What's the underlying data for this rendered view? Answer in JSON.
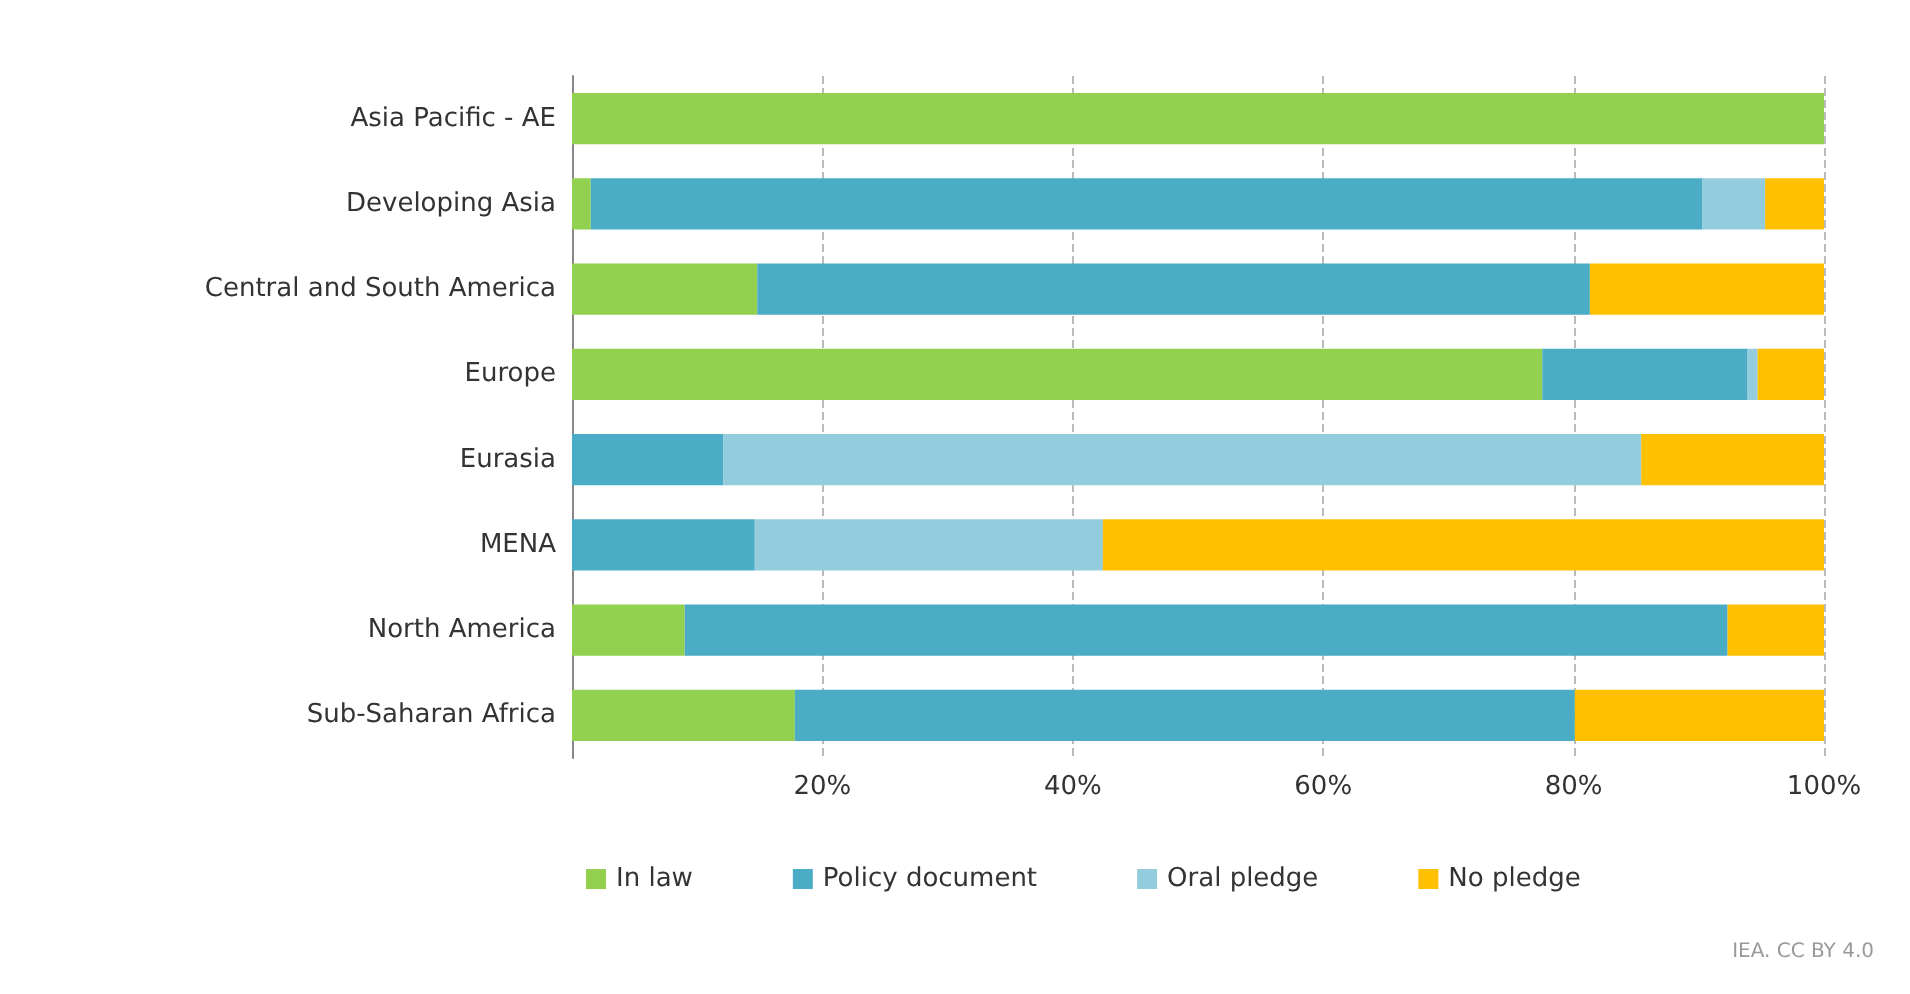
{
  "chart_data": {
    "type": "bar",
    "orientation": "horizontal",
    "stacked": true,
    "categories": [
      "Asia Pacific - AE",
      "Developing Asia",
      "Central and South America",
      "Europe",
      "Eurasia",
      "MENA",
      "North America",
      "Sub-Saharan Africa"
    ],
    "series": [
      {
        "name": "In law",
        "color": "#92d050",
        "values": [
          100,
          1.5,
          14.8,
          77.5,
          0,
          0,
          9,
          17.8
        ]
      },
      {
        "name": "Policy document",
        "color": "#4bacc6",
        "values": [
          0,
          88.8,
          66.5,
          16.4,
          12.1,
          14.6,
          83.3,
          62.3
        ]
      },
      {
        "name": "Oral pledge",
        "color": "#93cddd",
        "values": [
          0,
          5,
          0,
          0.8,
          73.3,
          27.8,
          0,
          0
        ]
      },
      {
        "name": "No pledge",
        "color": "#ffc000",
        "values": [
          0,
          4.7,
          18.7,
          5.3,
          14.6,
          57.6,
          7.7,
          19.9
        ]
      }
    ],
    "xlim": [
      0,
      100
    ],
    "xticks": [
      {
        "value": 0,
        "label": null
      },
      {
        "value": 20,
        "label": "20%"
      },
      {
        "value": 40,
        "label": "40%"
      },
      {
        "value": 60,
        "label": "60%"
      },
      {
        "value": 80,
        "label": "80%"
      },
      {
        "value": 100,
        "label": "100%"
      }
    ],
    "grid": "x",
    "legend": "bottom",
    "annotations": [
      "IEA. CC BY 4.0"
    ]
  }
}
